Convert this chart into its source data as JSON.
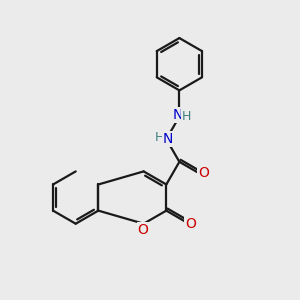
{
  "bg_color": "#ebebeb",
  "bond_color": "#1a1a1a",
  "nitrogen_color": "#0000cc",
  "oxygen_color": "#cc0000",
  "h_color": "#408080",
  "line_width": 1.6,
  "figsize": [
    3.0,
    3.0
  ],
  "dpi": 100,
  "xlim": [
    0,
    10
  ],
  "ylim": [
    0,
    10
  ]
}
